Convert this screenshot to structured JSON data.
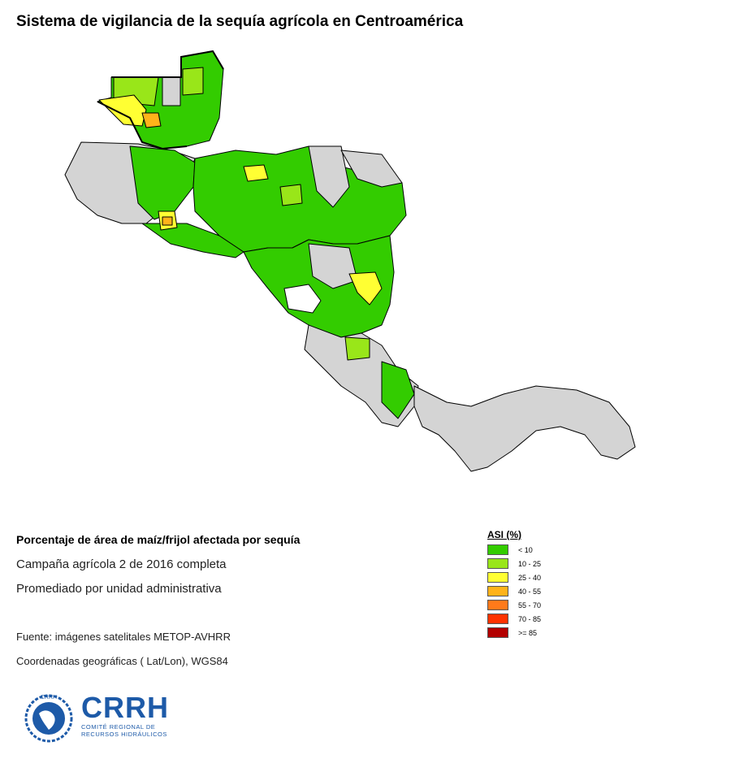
{
  "title": "Sistema de vigilancia de la sequía agrícola en Centroamérica",
  "subtitle": "Porcentaje de área de maíz/frijol afectada por sequía",
  "info": {
    "campaign": "Campaña agrícola 2 de 2016 completa",
    "averaging": "Promediado por unidad administrativa",
    "source": "Fuente: imágenes satelitales METOP-AVHRR",
    "coordinates": "Coordenadas geográficas ( Lat/Lon), WGS84"
  },
  "legend": {
    "title": "ASI (%)",
    "items": [
      {
        "label": "< 10",
        "color": "#33cc00"
      },
      {
        "label": "10 - 25",
        "color": "#99e619"
      },
      {
        "label": "25 - 40",
        "color": "#ffff33"
      },
      {
        "label": "40 - 55",
        "color": "#ffb31a"
      },
      {
        "label": "55 - 70",
        "color": "#ff7a1a"
      },
      {
        "label": "70 - 85",
        "color": "#ff3300"
      },
      {
        "label": ">= 85",
        "color": "#b30000"
      }
    ]
  },
  "no_data_color": "#d4d4d4",
  "logo": {
    "acronym": "CRRH",
    "small_text": "CRRH",
    "line1": "COMITÉ REGIONAL DE",
    "line2": "RECURSOS HIDRÁULICOS"
  }
}
